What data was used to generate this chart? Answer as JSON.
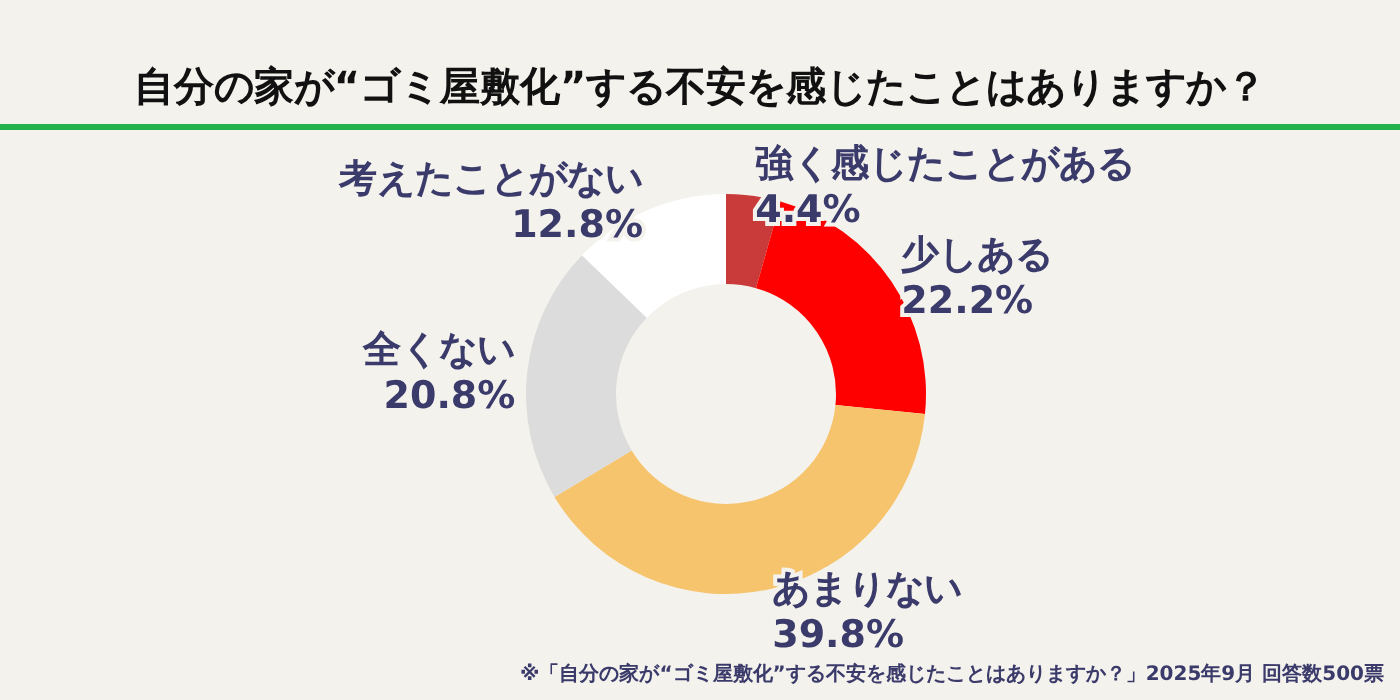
{
  "chart_data": {
    "type": "donut",
    "title": "自分の家が“ゴミ屋敷化”する不安を感じたことはありますか？",
    "categories": [
      "強く感じたことがある",
      "少しある",
      "あまりない",
      "全くない",
      "考えたことがない"
    ],
    "values": [
      4.4,
      22.2,
      39.8,
      20.8,
      12.8
    ],
    "colors": [
      "#c93a3a",
      "#ff0000",
      "#f7c46e",
      "#dcdcdc",
      "#ffffff"
    ],
    "value_labels": [
      "4.4%",
      "22.2%",
      "39.8%",
      "20.8%",
      "12.8%"
    ],
    "legend": false,
    "annotations": [
      "※「自分の家が“ゴミ屋敷化”する不安を感じたことはありますか？」2025年9月 回答数500票"
    ]
  }
}
